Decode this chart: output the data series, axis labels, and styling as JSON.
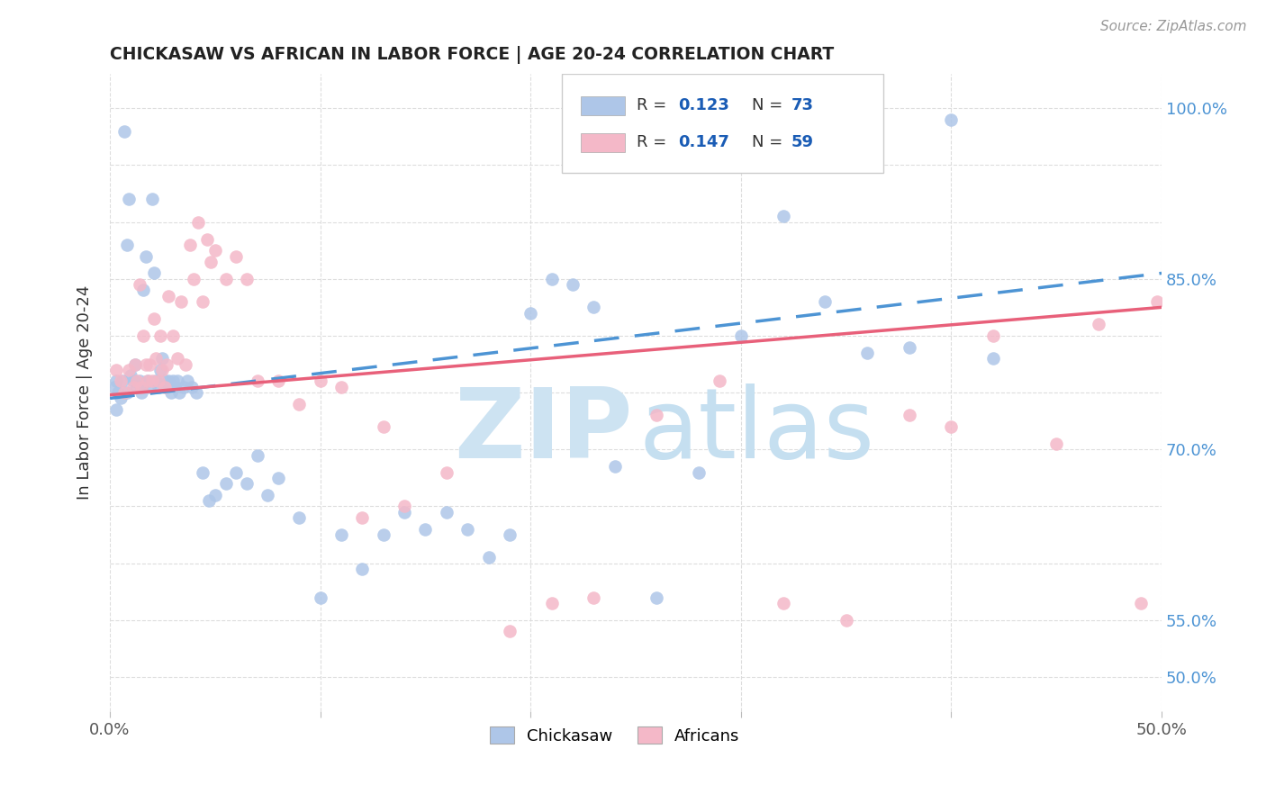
{
  "title": "CHICKASAW VS AFRICAN IN LABOR FORCE | AGE 20-24 CORRELATION CHART",
  "source": "Source: ZipAtlas.com",
  "ylabel": "In Labor Force | Age 20-24",
  "xlim": [
    0.0,
    0.5
  ],
  "ylim": [
    0.47,
    1.03
  ],
  "xticks": [
    0.0,
    0.1,
    0.2,
    0.3,
    0.4,
    0.5
  ],
  "xticklabels": [
    "0.0%",
    "",
    "",
    "",
    "",
    "50.0%"
  ],
  "yticks": [
    0.5,
    0.55,
    0.6,
    0.65,
    0.7,
    0.75,
    0.8,
    0.85,
    0.9,
    0.95,
    1.0
  ],
  "yticklabels_right": [
    "50.0%",
    "55.0%",
    "",
    "",
    "70.0%",
    "",
    "",
    "85.0%",
    "",
    "",
    "100.0%"
  ],
  "chickasaw_color": "#aec6e8",
  "african_color": "#f4b8c8",
  "chickasaw_line_color": "#4d94d4",
  "african_line_color": "#e8607a",
  "watermark_zip_color": "#cde3f2",
  "watermark_atlas_color": "#c5dff0",
  "R_chickasaw": 0.123,
  "N_chickasaw": 73,
  "R_african": 0.147,
  "N_african": 59,
  "legend_R_color": "#1a5cb5",
  "legend_N_color": "#1a5cb5",
  "right_axis_color": "#4d94d4",
  "chickasaw_x": [
    0.002,
    0.003,
    0.004,
    0.005,
    0.006,
    0.007,
    0.008,
    0.009,
    0.01,
    0.011,
    0.012,
    0.013,
    0.014,
    0.015,
    0.016,
    0.017,
    0.018,
    0.019,
    0.02,
    0.021,
    0.022,
    0.023,
    0.024,
    0.025,
    0.026,
    0.027,
    0.028,
    0.029,
    0.03,
    0.031,
    0.032,
    0.033,
    0.035,
    0.037,
    0.039,
    0.041,
    0.044,
    0.047,
    0.05,
    0.055,
    0.06,
    0.065,
    0.07,
    0.075,
    0.08,
    0.09,
    0.1,
    0.11,
    0.12,
    0.13,
    0.14,
    0.15,
    0.16,
    0.17,
    0.18,
    0.19,
    0.2,
    0.21,
    0.22,
    0.23,
    0.24,
    0.26,
    0.28,
    0.3,
    0.32,
    0.34,
    0.36,
    0.38,
    0.4,
    0.42,
    0.003,
    0.008,
    0.015
  ],
  "chickasaw_y": [
    0.755,
    0.76,
    0.75,
    0.745,
    0.76,
    0.98,
    0.88,
    0.92,
    0.765,
    0.76,
    0.775,
    0.755,
    0.76,
    0.75,
    0.84,
    0.87,
    0.76,
    0.755,
    0.92,
    0.855,
    0.76,
    0.755,
    0.77,
    0.78,
    0.76,
    0.755,
    0.76,
    0.75,
    0.76,
    0.755,
    0.76,
    0.75,
    0.755,
    0.76,
    0.755,
    0.75,
    0.68,
    0.655,
    0.66,
    0.67,
    0.68,
    0.67,
    0.695,
    0.66,
    0.675,
    0.64,
    0.57,
    0.625,
    0.595,
    0.625,
    0.645,
    0.63,
    0.645,
    0.63,
    0.605,
    0.625,
    0.82,
    0.85,
    0.845,
    0.825,
    0.685,
    0.57,
    0.68,
    0.8,
    0.905,
    0.83,
    0.785,
    0.79,
    0.99,
    0.78,
    0.735,
    0.75,
    0.755
  ],
  "african_x": [
    0.003,
    0.005,
    0.007,
    0.009,
    0.011,
    0.012,
    0.013,
    0.014,
    0.015,
    0.016,
    0.017,
    0.018,
    0.019,
    0.02,
    0.021,
    0.022,
    0.023,
    0.024,
    0.025,
    0.026,
    0.027,
    0.028,
    0.03,
    0.032,
    0.034,
    0.036,
    0.038,
    0.04,
    0.042,
    0.044,
    0.046,
    0.048,
    0.05,
    0.055,
    0.06,
    0.065,
    0.07,
    0.08,
    0.09,
    0.1,
    0.11,
    0.12,
    0.13,
    0.14,
    0.16,
    0.19,
    0.21,
    0.23,
    0.26,
    0.29,
    0.32,
    0.35,
    0.38,
    0.4,
    0.42,
    0.45,
    0.47,
    0.49,
    0.498
  ],
  "african_y": [
    0.77,
    0.76,
    0.75,
    0.77,
    0.755,
    0.775,
    0.76,
    0.845,
    0.755,
    0.8,
    0.775,
    0.76,
    0.775,
    0.76,
    0.815,
    0.78,
    0.76,
    0.8,
    0.77,
    0.755,
    0.775,
    0.835,
    0.8,
    0.78,
    0.83,
    0.775,
    0.88,
    0.85,
    0.9,
    0.83,
    0.885,
    0.865,
    0.875,
    0.85,
    0.87,
    0.85,
    0.76,
    0.76,
    0.74,
    0.76,
    0.755,
    0.64,
    0.72,
    0.65,
    0.68,
    0.54,
    0.565,
    0.57,
    0.73,
    0.76,
    0.565,
    0.55,
    0.73,
    0.72,
    0.8,
    0.705,
    0.81,
    0.565,
    0.83
  ]
}
